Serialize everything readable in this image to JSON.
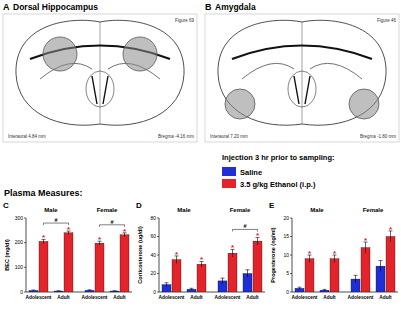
{
  "figure": {
    "panels": [
      {
        "letter": "A",
        "title": "Dorsal Hippocampus",
        "atlas": "Figure 69",
        "interaural": "Interaural 4.84 mm",
        "bregma": "Bregma -4.16 mm"
      },
      {
        "letter": "B",
        "title": "Amygdala",
        "atlas": "Figure 46",
        "interaural": "Interaural 7.20 mm",
        "bregma": "Bregma -1.80 mm"
      }
    ],
    "legend_title": "Injection 3 hr prior to sampling:",
    "section_title": "Plasma Measures:"
  },
  "chart_data": [
    {
      "type": "bar",
      "panel": "C",
      "ylabel": "BEC (mg/dl)",
      "groups": [
        "Male",
        "Female"
      ],
      "categories": [
        "Adolescent",
        "Adult",
        "Adolescent",
        "Adult"
      ],
      "series": [
        {
          "name": "Saline",
          "color": "#1f2fd6",
          "values": [
            6,
            4,
            7,
            4
          ],
          "errors": [
            2,
            1,
            2,
            1
          ]
        },
        {
          "name": "3.5 g/kg Ethanol (i.p.)",
          "color": "#e3242b",
          "values": [
            205,
            240,
            198,
            232
          ],
          "errors": [
            8,
            7,
            8,
            8
          ],
          "significance": [
            "*",
            "*",
            "*",
            "*"
          ]
        }
      ],
      "brackets": [
        {
          "text": "#",
          "series": 1,
          "from": 0,
          "to": 1
        },
        {
          "text": "#",
          "series": 1,
          "from": 2,
          "to": 3
        }
      ],
      "ylim": [
        0,
        300
      ],
      "yticks": [
        0,
        100,
        200,
        300
      ]
    },
    {
      "type": "bar",
      "panel": "D",
      "ylabel": "Corticosterone (ug/dl)",
      "groups": [
        "Male",
        "Female"
      ],
      "categories": [
        "Adolescent",
        "Adult",
        "Adolescent",
        "Adult"
      ],
      "series": [
        {
          "name": "Saline",
          "color": "#1f2fd6",
          "values": [
            8,
            3,
            12,
            20
          ],
          "errors": [
            2,
            1,
            3,
            4
          ]
        },
        {
          "name": "3.5 g/kg Ethanol (i.p.)",
          "color": "#e3242b",
          "values": [
            35,
            30,
            42,
            55
          ],
          "errors": [
            4,
            3,
            4,
            4
          ],
          "significance": [
            "*",
            "*",
            "*",
            "*"
          ]
        }
      ],
      "brackets": [
        {
          "text": "#",
          "series": 1,
          "from": 2,
          "to": 3
        }
      ],
      "ylim": [
        0,
        80
      ],
      "yticks": [
        0,
        20,
        40,
        60,
        80
      ]
    },
    {
      "type": "bar",
      "panel": "E",
      "ylabel": "Progesterone (ng/ml)",
      "groups": [
        "Male",
        "Female"
      ],
      "categories": [
        "Adolescent",
        "Adult",
        "Adolescent",
        "Adult"
      ],
      "series": [
        {
          "name": "Saline",
          "color": "#1f2fd6",
          "values": [
            1,
            0.5,
            3.5,
            7
          ],
          "errors": [
            0.3,
            0.2,
            1,
            1.5
          ]
        },
        {
          "name": "3.5 g/kg Ethanol (i.p.)",
          "color": "#e3242b",
          "values": [
            9,
            9,
            12,
            15
          ],
          "errors": [
            1,
            1,
            1.5,
            1.5
          ],
          "significance": [
            "*",
            "*",
            "*",
            "*"
          ]
        }
      ],
      "ylim": [
        0,
        20
      ],
      "yticks": [
        0,
        5,
        10,
        15,
        20
      ]
    }
  ]
}
